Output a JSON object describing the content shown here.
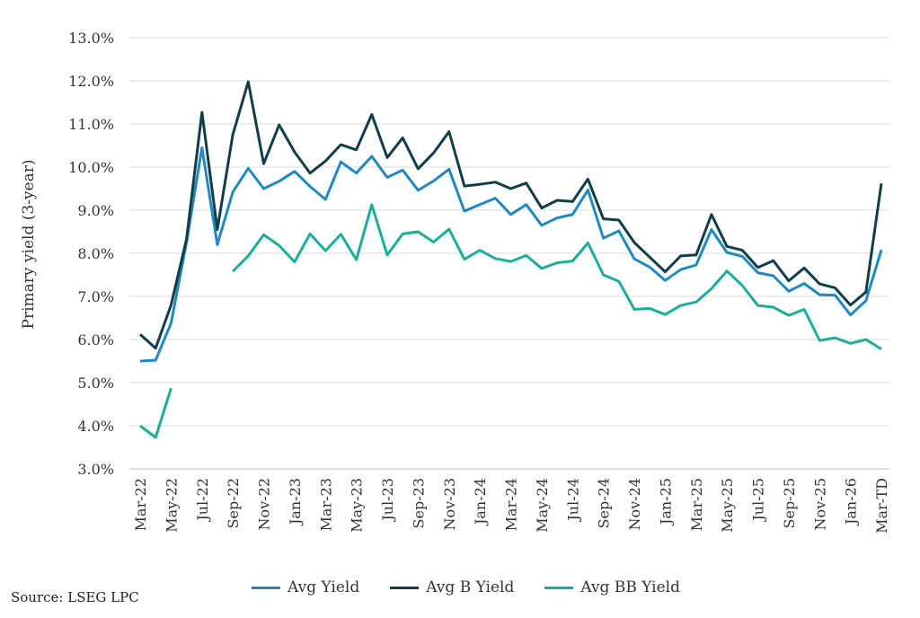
{
  "source": "Source: LSEG LPC",
  "chart_data": {
    "type": "line",
    "ylabel": "Primary yield (3-year)",
    "xlabel": "",
    "ylim": [
      3.0,
      13.0
    ],
    "yticks": [
      "3.0%",
      "4.0%",
      "5.0%",
      "6.0%",
      "7.0%",
      "8.0%",
      "9.0%",
      "10.0%",
      "11.0%",
      "12.0%",
      "13.0%"
    ],
    "grid": "horizontal",
    "legend_position": "bottom",
    "x": [
      "Mar-22",
      "Apr-22",
      "May-22",
      "Jun-22",
      "Jul-22",
      "Aug-22",
      "Sep-22",
      "Oct-22",
      "Nov-22",
      "Dec-22",
      "Jan-23",
      "Feb-23",
      "Mar-23",
      "Apr-23",
      "May-23",
      "Jun-23",
      "Jul-23",
      "Aug-23",
      "Sep-23",
      "Oct-23",
      "Nov-23",
      "Dec-23",
      "Jan-24",
      "Feb-24",
      "Mar-24",
      "Apr-24",
      "May-24",
      "Jun-24",
      "Jul-24",
      "Aug-24",
      "Sep-24",
      "Oct-24",
      "Nov-24",
      "Dec-24",
      "Jan-25",
      "Feb-25",
      "Mar-25",
      "Apr-25",
      "May-25",
      "Jun-25",
      "Jul-25",
      "Aug-25",
      "Sep-25",
      "Oct-25",
      "Nov-25",
      "Dec-25",
      "Jan-26",
      "Feb-26",
      "Mar-TD"
    ],
    "x_tick_labels": [
      "Mar-22",
      "May-22",
      "Jul-22",
      "Sep-22",
      "Nov-22",
      "Jan-23",
      "Mar-23",
      "May-23",
      "Jul-23",
      "Sep-23",
      "Nov-23",
      "Jan-24",
      "Mar-24",
      "May-24",
      "Jul-24",
      "Sep-24",
      "Nov-24",
      "Jan-25",
      "Mar-25",
      "May-25",
      "Jul-25",
      "Sep-25",
      "Nov-25",
      "Jan-26",
      "Mar-TD"
    ],
    "series": [
      {
        "name": "Avg Yield",
        "color": "#1f8ac0",
        "values": [
          5.5,
          5.52,
          6.38,
          8.25,
          10.45,
          8.2,
          9.42,
          9.97,
          9.5,
          9.67,
          9.9,
          9.55,
          9.25,
          10.12,
          9.86,
          10.25,
          9.76,
          9.93,
          9.46,
          9.68,
          9.95,
          8.98,
          9.13,
          9.28,
          8.9,
          9.13,
          8.65,
          8.82,
          8.9,
          9.47,
          8.35,
          8.52,
          7.87,
          7.68,
          7.37,
          7.62,
          7.73,
          8.55,
          8.02,
          7.93,
          7.55,
          7.48,
          7.12,
          7.3,
          7.04,
          7.03,
          6.57,
          6.9,
          8.08
        ]
      },
      {
        "name": "Avg B Yield",
        "color": "#123e4a",
        "values": [
          6.12,
          5.8,
          6.8,
          8.33,
          11.27,
          8.55,
          10.75,
          11.98,
          10.08,
          10.98,
          10.35,
          9.86,
          10.14,
          10.52,
          10.4,
          11.22,
          10.22,
          10.68,
          9.96,
          10.33,
          10.82,
          9.56,
          9.6,
          9.65,
          9.5,
          9.63,
          9.05,
          9.23,
          9.2,
          9.72,
          8.8,
          8.77,
          8.25,
          7.91,
          7.57,
          7.94,
          7.96,
          8.9,
          8.16,
          8.07,
          7.67,
          7.83,
          7.36,
          7.66,
          7.29,
          7.2,
          6.8,
          7.1,
          9.62
        ]
      },
      {
        "name": "Avg BB Yield",
        "color": "#1aaf98",
        "values": [
          4.0,
          3.73,
          4.87,
          null,
          null,
          null,
          7.58,
          7.94,
          8.43,
          8.18,
          7.8,
          8.45,
          8.06,
          8.44,
          7.85,
          9.13,
          7.96,
          8.45,
          8.5,
          8.26,
          8.56,
          7.86,
          8.07,
          7.88,
          7.81,
          7.95,
          7.65,
          7.78,
          7.82,
          8.24,
          7.5,
          7.35,
          6.7,
          6.72,
          6.58,
          6.79,
          6.87,
          7.18,
          7.59,
          7.25,
          6.79,
          6.75,
          6.56,
          6.7,
          5.98,
          6.04,
          5.91,
          6.0,
          5.78
        ]
      }
    ]
  }
}
